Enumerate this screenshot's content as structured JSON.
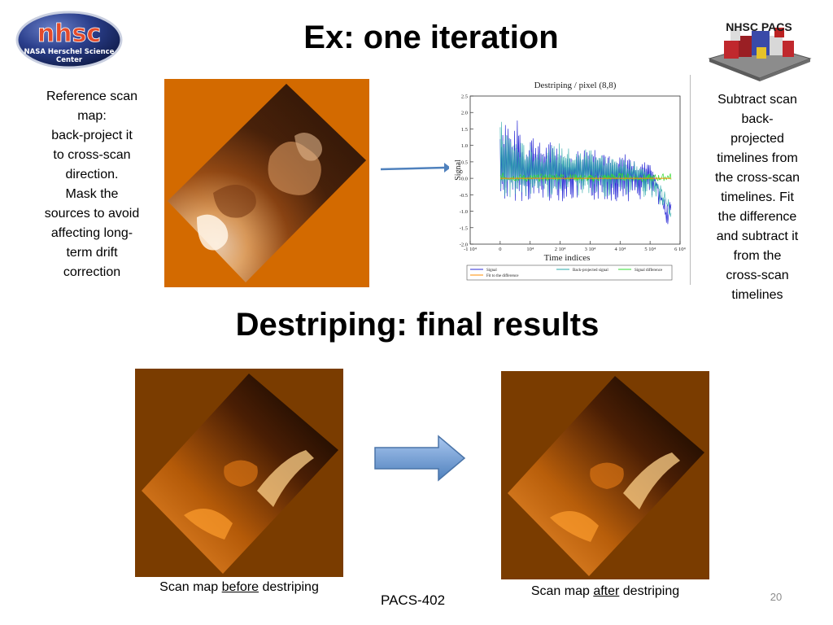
{
  "slide": {
    "title_top": "Ex: one iteration",
    "title_mid": "Destriping: final results",
    "page_number": "20",
    "footer": "PACS-402"
  },
  "logos": {
    "nhsc_big": "nhsc",
    "nhsc_sub1": "NASA Herschel Science",
    "nhsc_sub2": "Center",
    "pacs": "NHSC PACS"
  },
  "left_text": [
    "Reference scan",
    "map:",
    "back-project it",
    "to cross-scan",
    "direction.",
    "Mask the",
    "sources to avoid",
    "affecting long-",
    "term drift",
    "correction"
  ],
  "right_text": [
    "Subtract scan",
    "back-",
    "projected",
    "timelines from",
    "the cross-scan",
    "timelines. Fit",
    "the difference",
    "and subtract it",
    "from the",
    "cross-scan",
    "timelines"
  ],
  "captions": {
    "before_prefix": "Scan map ",
    "before_word": "before",
    "before_suffix": " destriping",
    "after_prefix": "Scan map ",
    "after_word": "after",
    "after_suffix": " destriping"
  },
  "colors": {
    "map_bg_ref": "#d36a00",
    "map_bg_results": "#7a3c00",
    "arrow_blue": "#4f81bd",
    "signal_blue": "#2b2bd6",
    "backproj_teal": "#2aa8a8",
    "diff_green": "#33dd33",
    "fit_orange": "#ff8c00"
  },
  "chart_data": {
    "type": "line",
    "title": "Destriping / pixel (8,8)",
    "xlabel": "Time indices",
    "ylabel": "Signal",
    "xlim": [
      -10000,
      60000
    ],
    "ylim": [
      -2.0,
      2.5
    ],
    "xticks": [
      "-1 10⁴",
      "0",
      "10⁴",
      "2 10⁴",
      "3 10⁴",
      "4 10⁴",
      "5 10⁴",
      "6 10⁴"
    ],
    "xtick_values": [
      -10000,
      0,
      10000,
      20000,
      30000,
      40000,
      50000,
      60000
    ],
    "yticks": [
      "2.5",
      "2.0",
      "1.5",
      "1.0",
      "0.5",
      "0.0",
      "-0.5",
      "-1.0",
      "-1.5",
      "-2.0"
    ],
    "ytick_values": [
      2.5,
      2.0,
      1.5,
      1.0,
      0.5,
      0.0,
      -0.5,
      -1.0,
      -1.5,
      -2.0
    ],
    "legend": [
      "Signal",
      "Back-projected signal",
      "Signal difference",
      "Fit to the difference"
    ],
    "series": [
      {
        "name": "Signal",
        "x": [
          0,
          2000,
          4000,
          6000,
          8000,
          10000,
          14000,
          18000,
          22000,
          26000,
          30000,
          34000,
          38000,
          42000,
          46000,
          50000,
          54000,
          57000
        ],
        "values": [
          1.6,
          2.1,
          1.2,
          1.9,
          0.8,
          1.5,
          1.0,
          1.2,
          0.6,
          0.9,
          1.0,
          1.0,
          0.5,
          0.8,
          0.4,
          0.6,
          -0.9,
          -1.4
        ]
      },
      {
        "name": "Back-projected signal",
        "x": [
          0,
          5000,
          10000,
          15000,
          20000,
          25000,
          30000,
          35000,
          40000,
          45000,
          50000,
          55000,
          57000
        ],
        "values": [
          1.8,
          1.2,
          1.0,
          0.9,
          1.1,
          0.8,
          1.0,
          0.7,
          0.6,
          0.5,
          0.2,
          -0.7,
          -1.2
        ]
      },
      {
        "name": "Signal difference",
        "x": [
          0,
          10000,
          20000,
          30000,
          40000,
          50000,
          57000
        ],
        "values": [
          0.05,
          0.0,
          0.05,
          0.0,
          0.05,
          0.0,
          0.05
        ]
      },
      {
        "name": "Fit to the difference",
        "x": [
          0,
          57000
        ],
        "values": [
          0.0,
          0.0
        ]
      }
    ]
  }
}
